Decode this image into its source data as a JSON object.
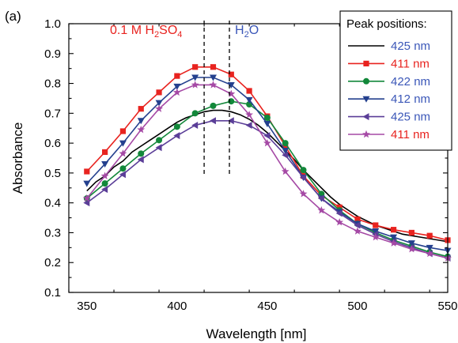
{
  "panel_label": "(a)",
  "colors": {
    "black": "#000000",
    "red": "#e8231f",
    "green": "#12883a",
    "blue": "#24408e",
    "purple": "#5b3e98",
    "magenta": "#a549a5",
    "anno_blue": "#3b57b8"
  },
  "chart_data": {
    "type": "line",
    "xlabel": "Wavelength [nm]",
    "ylabel": "Absorbance",
    "xlim": [
      340,
      550
    ],
    "ylim": [
      0.1,
      1.0
    ],
    "xticks": [
      350,
      400,
      450,
      500,
      550
    ],
    "yticks": [
      0.1,
      0.2,
      0.3,
      0.4,
      0.5,
      0.6,
      0.7,
      0.8,
      0.9,
      1.0
    ],
    "grid": false,
    "legend": {
      "title": "Peak positions:",
      "placement": "top-right",
      "labels": [
        "425 nm",
        "411 nm",
        "422 nm",
        "412 nm",
        "425 nm",
        "411 nm"
      ]
    },
    "annotations": {
      "left_prefix": "0.1 M H",
      "left_sub1": "2",
      "left_mid": "SO",
      "left_sub2": "4",
      "right_prefix": "H",
      "right_sub": "2",
      "right_suffix": "O",
      "dashed_lines_x": [
        415,
        429
      ]
    },
    "series": [
      {
        "color": "black",
        "marker": "none",
        "x": [
          350,
          355,
          360,
          365,
          370,
          375,
          380,
          385,
          390,
          395,
          400,
          405,
          410,
          415,
          420,
          425,
          430,
          435,
          440,
          445,
          450,
          455,
          460,
          465,
          470,
          475,
          480,
          485,
          490,
          495,
          500,
          505,
          510,
          515,
          520,
          525,
          530,
          535,
          540,
          545,
          550
        ],
        "values": [
          0.44,
          0.47,
          0.49,
          0.52,
          0.54,
          0.57,
          0.59,
          0.61,
          0.63,
          0.65,
          0.67,
          0.685,
          0.695,
          0.705,
          0.71,
          0.71,
          0.705,
          0.695,
          0.68,
          0.66,
          0.635,
          0.605,
          0.575,
          0.545,
          0.51,
          0.48,
          0.45,
          0.42,
          0.395,
          0.375,
          0.355,
          0.34,
          0.325,
          0.315,
          0.305,
          0.295,
          0.29,
          0.285,
          0.28,
          0.275,
          0.27
        ]
      },
      {
        "color": "red",
        "marker": "square",
        "x": [
          350,
          360,
          370,
          380,
          390,
          400,
          410,
          420,
          430,
          440,
          450,
          460,
          470,
          480,
          490,
          500,
          510,
          520,
          530,
          540,
          550
        ],
        "values": [
          0.505,
          0.57,
          0.64,
          0.715,
          0.77,
          0.825,
          0.855,
          0.855,
          0.83,
          0.775,
          0.69,
          0.59,
          0.49,
          0.425,
          0.385,
          0.345,
          0.325,
          0.31,
          0.3,
          0.29,
          0.275
        ]
      },
      {
        "color": "green",
        "marker": "circle",
        "x": [
          350,
          360,
          370,
          380,
          390,
          400,
          410,
          420,
          430,
          440,
          450,
          460,
          470,
          480,
          490,
          500,
          510,
          520,
          530,
          540,
          550
        ],
        "values": [
          0.415,
          0.465,
          0.515,
          0.565,
          0.61,
          0.655,
          0.7,
          0.725,
          0.74,
          0.73,
          0.685,
          0.6,
          0.51,
          0.43,
          0.375,
          0.33,
          0.3,
          0.275,
          0.255,
          0.235,
          0.22
        ]
      },
      {
        "color": "blue",
        "marker": "triangle-down",
        "x": [
          350,
          360,
          370,
          380,
          390,
          400,
          410,
          420,
          430,
          440,
          450,
          460,
          470,
          480,
          490,
          500,
          510,
          520,
          530,
          540,
          550
        ],
        "values": [
          0.465,
          0.53,
          0.6,
          0.675,
          0.735,
          0.79,
          0.82,
          0.82,
          0.795,
          0.745,
          0.665,
          0.575,
          0.485,
          0.415,
          0.37,
          0.33,
          0.305,
          0.285,
          0.265,
          0.25,
          0.24
        ]
      },
      {
        "color": "purple",
        "marker": "triangle-left",
        "x": [
          350,
          360,
          370,
          380,
          390,
          400,
          410,
          420,
          430,
          440,
          450,
          460,
          470,
          480,
          490,
          500,
          510,
          520,
          530,
          540,
          550
        ],
        "values": [
          0.4,
          0.445,
          0.495,
          0.545,
          0.585,
          0.625,
          0.66,
          0.675,
          0.675,
          0.66,
          0.625,
          0.56,
          0.485,
          0.415,
          0.365,
          0.325,
          0.295,
          0.27,
          0.25,
          0.23,
          0.215
        ]
      },
      {
        "color": "magenta",
        "marker": "star",
        "x": [
          350,
          360,
          370,
          380,
          390,
          400,
          410,
          420,
          430,
          440,
          450,
          460,
          470,
          480,
          490,
          500,
          510,
          520,
          530,
          540,
          550
        ],
        "values": [
          0.415,
          0.49,
          0.565,
          0.645,
          0.715,
          0.77,
          0.795,
          0.795,
          0.765,
          0.695,
          0.6,
          0.505,
          0.43,
          0.375,
          0.335,
          0.305,
          0.285,
          0.265,
          0.245,
          0.23,
          0.215
        ]
      }
    ]
  }
}
